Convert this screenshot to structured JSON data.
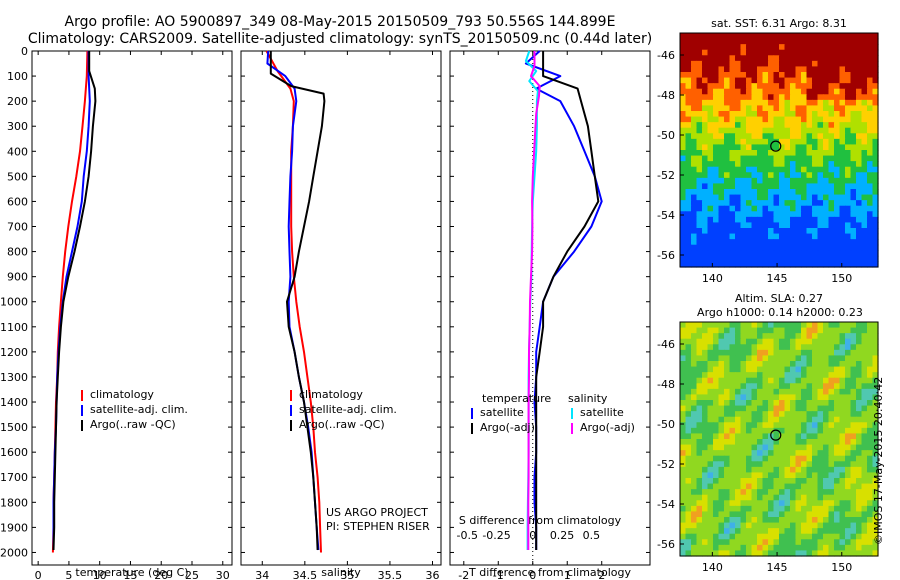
{
  "header": {
    "line1": "Argo profile: AO 5900897_349 08-May-2015 20150509_793 50.556S 144.899E",
    "line2": "Climatology: CARS2009. Satellite-adjusted climatology: synTS_20150509.nc (0.44d later)"
  },
  "credit": {
    "line1": "US ARGO PROJECT",
    "line2": "PI: STEPHEN RISER"
  },
  "maps": {
    "sst_title": "sat. SST: 6.31  Argo: 8.31",
    "sla_title1": "Altim. SLA: 0.27",
    "sla_title2": "Argo h1000: 0.14 h2000: 0.23",
    "imos_stamp": "©IMOS 17-May-2015 20:40:42",
    "y_ticks": [
      -46,
      -48,
      -50,
      -52,
      -54,
      -56
    ],
    "x_ticks": [
      140,
      145,
      150
    ],
    "xlim": [
      137.5,
      152.8
    ],
    "ylim": [
      -56.6,
      -44.9
    ],
    "argo_position": {
      "lon": 144.899,
      "lat": -50.556
    }
  },
  "colors": {
    "climatology": "#ff0000",
    "satellite": "#0000ff",
    "argo": "#000000",
    "satellite_s": "#00e5ff",
    "argo_s": "#ff00ff"
  },
  "chart_data": [
    {
      "type": "line",
      "xlabel": "temperature (deg C)",
      "ylabel": "",
      "xlim": [
        -1,
        31.5
      ],
      "ylim": [
        2050,
        0
      ],
      "x_ticks": [
        0,
        5,
        10,
        15,
        20,
        25,
        30
      ],
      "y_ticks": [
        0,
        100,
        200,
        300,
        400,
        500,
        600,
        700,
        800,
        900,
        1000,
        1100,
        1200,
        1300,
        1400,
        1500,
        1600,
        1700,
        1800,
        1900,
        2000
      ],
      "legend": [
        "climatology",
        "satellite-adj. clim.",
        "Argo(..raw -QC)"
      ],
      "legend_position": "lower-right",
      "series": [
        {
          "name": "climatology",
          "points": [
            [
              8.0,
              0
            ],
            [
              7.9,
              100
            ],
            [
              7.6,
              200
            ],
            [
              7.2,
              300
            ],
            [
              6.8,
              400
            ],
            [
              6.2,
              500
            ],
            [
              5.5,
              600
            ],
            [
              4.9,
              700
            ],
            [
              4.4,
              800
            ],
            [
              4.0,
              900
            ],
            [
              3.7,
              1000
            ],
            [
              3.4,
              1100
            ],
            [
              3.2,
              1200
            ],
            [
              3.1,
              1300
            ],
            [
              2.9,
              1400
            ],
            [
              2.8,
              1500
            ],
            [
              2.7,
              1600
            ],
            [
              2.6,
              1700
            ],
            [
              2.5,
              1800
            ],
            [
              2.5,
              1900
            ],
            [
              2.4,
              2000
            ]
          ]
        },
        {
          "name": "satellite-adj. clim.",
          "points": [
            [
              8.2,
              0
            ],
            [
              8.2,
              100
            ],
            [
              8.4,
              200
            ],
            [
              8.2,
              300
            ],
            [
              7.9,
              400
            ],
            [
              7.4,
              500
            ],
            [
              7.1,
              600
            ],
            [
              6.4,
              700
            ],
            [
              5.5,
              800
            ],
            [
              4.6,
              900
            ],
            [
              4.0,
              1000
            ],
            [
              3.6,
              1100
            ],
            [
              3.3,
              1200
            ],
            [
              3.1,
              1300
            ],
            [
              3.0,
              1400
            ],
            [
              2.9,
              1500
            ],
            [
              2.7,
              1600
            ],
            [
              2.6,
              1700
            ],
            [
              2.5,
              1800
            ],
            [
              2.5,
              1900
            ],
            [
              2.5,
              1990
            ]
          ]
        },
        {
          "name": "Argo(..raw -QC)",
          "points": [
            [
              8.3,
              0
            ],
            [
              8.3,
              80
            ],
            [
              9.2,
              150
            ],
            [
              9.3,
              200
            ],
            [
              8.9,
              300
            ],
            [
              8.6,
              400
            ],
            [
              8.2,
              500
            ],
            [
              7.6,
              600
            ],
            [
              6.8,
              700
            ],
            [
              5.9,
              800
            ],
            [
              4.9,
              900
            ],
            [
              4.1,
              1000
            ],
            [
              3.7,
              1100
            ],
            [
              3.4,
              1200
            ],
            [
              3.2,
              1300
            ],
            [
              3.0,
              1400
            ],
            [
              2.9,
              1500
            ],
            [
              2.8,
              1600
            ],
            [
              2.7,
              1700
            ],
            [
              2.6,
              1800
            ],
            [
              2.6,
              1900
            ],
            [
              2.5,
              1990
            ]
          ]
        }
      ]
    },
    {
      "type": "line",
      "xlabel": "salinity",
      "ylabel": "",
      "xlim": [
        33.75,
        36.1
      ],
      "ylim": [
        2050,
        0
      ],
      "x_ticks": [
        34,
        34.5,
        35,
        35.5,
        36
      ],
      "legend": [
        "climatology",
        "satellite-adj. clim.",
        "Argo(..raw -QC)"
      ],
      "legend_position": "lower-right",
      "series": [
        {
          "name": "climatology",
          "points": [
            [
              34.05,
              0
            ],
            [
              34.18,
              80
            ],
            [
              34.33,
              150
            ],
            [
              34.37,
              200
            ],
            [
              34.36,
              300
            ],
            [
              34.34,
              400
            ],
            [
              34.34,
              500
            ],
            [
              34.34,
              600
            ],
            [
              34.34,
              700
            ],
            [
              34.35,
              800
            ],
            [
              34.37,
              900
            ],
            [
              34.4,
              1000
            ],
            [
              34.44,
              1100
            ],
            [
              34.49,
              1200
            ],
            [
              34.53,
              1300
            ],
            [
              34.57,
              1400
            ],
            [
              34.6,
              1500
            ],
            [
              34.62,
              1600
            ],
            [
              34.65,
              1700
            ],
            [
              34.67,
              1800
            ],
            [
              34.68,
              1900
            ],
            [
              34.69,
              2000
            ]
          ]
        },
        {
          "name": "satellite-adj. clim.",
          "points": [
            [
              34.07,
              0
            ],
            [
              34.06,
              50
            ],
            [
              34.27,
              100
            ],
            [
              34.38,
              150
            ],
            [
              34.4,
              200
            ],
            [
              34.36,
              300
            ],
            [
              34.35,
              400
            ],
            [
              34.33,
              500
            ],
            [
              34.32,
              600
            ],
            [
              34.31,
              700
            ],
            [
              34.32,
              800
            ],
            [
              34.33,
              900
            ],
            [
              34.31,
              1000
            ],
            [
              34.32,
              1100
            ],
            [
              34.38,
              1200
            ],
            [
              34.43,
              1300
            ],
            [
              34.49,
              1400
            ],
            [
              34.54,
              1500
            ],
            [
              34.58,
              1600
            ],
            [
              34.6,
              1700
            ],
            [
              34.62,
              1800
            ],
            [
              34.64,
              1900
            ],
            [
              34.66,
              1990
            ]
          ]
        },
        {
          "name": "Argo(..raw -QC)",
          "points": [
            [
              34.1,
              0
            ],
            [
              34.1,
              90
            ],
            [
              34.34,
              140
            ],
            [
              34.72,
              170
            ],
            [
              34.73,
              200
            ],
            [
              34.7,
              300
            ],
            [
              34.65,
              400
            ],
            [
              34.6,
              500
            ],
            [
              34.55,
              600
            ],
            [
              34.49,
              700
            ],
            [
              34.43,
              800
            ],
            [
              34.38,
              900
            ],
            [
              34.29,
              1000
            ],
            [
              34.31,
              1100
            ],
            [
              34.38,
              1200
            ],
            [
              34.43,
              1300
            ],
            [
              34.49,
              1400
            ],
            [
              34.53,
              1500
            ],
            [
              34.57,
              1600
            ],
            [
              34.6,
              1700
            ],
            [
              34.62,
              1800
            ],
            [
              34.64,
              1900
            ],
            [
              34.65,
              1990
            ]
          ]
        }
      ]
    },
    {
      "type": "line",
      "xlabel": "T difference from climatology",
      "ylabel": "",
      "secondary_xlabel": "S difference from climatology",
      "xlim": [
        -2.4,
        3.4
      ],
      "ylim": [
        2050,
        0
      ],
      "x_ticks": [
        -2,
        -1,
        0,
        1,
        2
      ],
      "secondary_ticks": [
        "-0.5",
        "-0.25",
        "0",
        "0.25",
        "0.5"
      ],
      "legend_titles": [
        "temperature",
        "salinity"
      ],
      "legend": [
        "satellite",
        "Argo(-adj)",
        "satellite",
        "Argo(-adj)"
      ],
      "legend_position": "lower-center",
      "series": [
        {
          "name": "satellite",
          "group": "temperature",
          "points": [
            [
              0.2,
              0
            ],
            [
              -0.2,
              50
            ],
            [
              0.8,
              100
            ],
            [
              0.1,
              150
            ],
            [
              0.8,
              200
            ],
            [
              1.2,
              300
            ],
            [
              1.5,
              400
            ],
            [
              1.8,
              500
            ],
            [
              2.0,
              600
            ],
            [
              1.7,
              700
            ],
            [
              1.2,
              800
            ],
            [
              0.6,
              900
            ],
            [
              0.3,
              1000
            ],
            [
              0.2,
              1100
            ],
            [
              0.1,
              1200
            ],
            [
              0.1,
              1300
            ],
            [
              0.05,
              1400
            ],
            [
              0.1,
              1500
            ],
            [
              0.1,
              1600
            ],
            [
              0.05,
              1700
            ],
            [
              0.05,
              1800
            ],
            [
              0.1,
              1900
            ],
            [
              0.1,
              1990
            ]
          ]
        },
        {
          "name": "Argo(-adj)",
          "group": "temperature",
          "points": [
            [
              0.3,
              0
            ],
            [
              0.3,
              100
            ],
            [
              1.3,
              150
            ],
            [
              1.4,
              200
            ],
            [
              1.6,
              300
            ],
            [
              1.7,
              400
            ],
            [
              1.8,
              500
            ],
            [
              1.9,
              600
            ],
            [
              1.5,
              700
            ],
            [
              1.0,
              800
            ],
            [
              0.6,
              900
            ],
            [
              0.3,
              1000
            ],
            [
              0.3,
              1100
            ],
            [
              0.2,
              1200
            ],
            [
              0.1,
              1300
            ],
            [
              0.1,
              1400
            ],
            [
              0.1,
              1500
            ],
            [
              0.1,
              1600
            ],
            [
              0.1,
              1700
            ],
            [
              0.1,
              1800
            ],
            [
              0.1,
              1900
            ],
            [
              0.1,
              1990
            ]
          ]
        },
        {
          "name": "satellite",
          "group": "salinity",
          "points": [
            [
              -0.1,
              0
            ],
            [
              -0.2,
              40
            ],
            [
              0.1,
              80
            ],
            [
              -0.1,
              120
            ],
            [
              0.15,
              160
            ],
            [
              0.12,
              200
            ],
            [
              0.12,
              300
            ],
            [
              0.1,
              400
            ],
            [
              0.05,
              500
            ],
            [
              0.0,
              600
            ],
            [
              -0.02,
              700
            ],
            [
              -0.03,
              800
            ],
            [
              -0.04,
              900
            ],
            [
              -0.07,
              1000
            ],
            [
              -0.09,
              1100
            ],
            [
              -0.11,
              1200
            ],
            [
              -0.12,
              1300
            ],
            [
              -0.12,
              1400
            ],
            [
              -0.12,
              1500
            ],
            [
              -0.12,
              1600
            ],
            [
              -0.13,
              1700
            ],
            [
              -0.14,
              1800
            ],
            [
              -0.15,
              1900
            ],
            [
              -0.15,
              1990
            ]
          ]
        },
        {
          "name": "Argo(-adj)",
          "group": "salinity",
          "points": [
            [
              0.05,
              0
            ],
            [
              0.05,
              60
            ],
            [
              -0.05,
              100
            ],
            [
              0.2,
              140
            ],
            [
              0.18,
              180
            ],
            [
              0.1,
              250
            ],
            [
              0.06,
              350
            ],
            [
              0.0,
              500
            ],
            [
              -0.02,
              600
            ],
            [
              -0.01,
              700
            ],
            [
              -0.02,
              800
            ],
            [
              -0.05,
              900
            ],
            [
              -0.08,
              1000
            ],
            [
              -0.09,
              1100
            ],
            [
              -0.11,
              1200
            ],
            [
              -0.11,
              1300
            ],
            [
              -0.12,
              1400
            ],
            [
              -0.12,
              1500
            ],
            [
              -0.12,
              1600
            ],
            [
              -0.12,
              1700
            ],
            [
              -0.13,
              1800
            ],
            [
              -0.13,
              1900
            ],
            [
              -0.13,
              1990
            ]
          ]
        }
      ]
    }
  ]
}
